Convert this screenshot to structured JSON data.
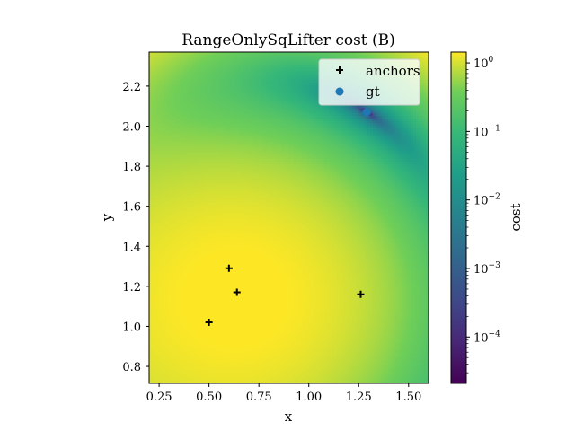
{
  "chart_data": {
    "type": "heatmap",
    "title": "RangeOnlySqLifter cost (B)",
    "xlabel": "x",
    "ylabel": "y",
    "xlim": [
      0.2,
      1.6
    ],
    "ylim": [
      0.715,
      2.37
    ],
    "x_ticks": [
      "0.25",
      "0.50",
      "0.75",
      "1.00",
      "1.25",
      "1.50"
    ],
    "y_ticks": [
      "0.8",
      "1.0",
      "1.2",
      "1.4",
      "1.6",
      "1.8",
      "2.0",
      "2.2"
    ],
    "colorbar": {
      "label": "cost",
      "scale": "log",
      "colormap": "viridis",
      "range": [
        2.1e-05,
        1.44
      ],
      "ticks": [
        {
          "base": "10",
          "exp": "0"
        },
        {
          "base": "10",
          "exp": "−1"
        },
        {
          "base": "10",
          "exp": "−2"
        },
        {
          "base": "10",
          "exp": "−3"
        },
        {
          "base": "10",
          "exp": "−4"
        }
      ]
    },
    "series": [
      {
        "name": "anchors",
        "marker": "plus",
        "color": "#000000",
        "points": [
          [
            0.5,
            1.02
          ],
          [
            0.6,
            1.29
          ],
          [
            0.64,
            1.17
          ],
          [
            1.26,
            1.16
          ]
        ]
      },
      {
        "name": "gt",
        "marker": "circle",
        "color": "#1f77b4",
        "points": [
          [
            1.29,
            2.07
          ]
        ]
      }
    ],
    "legend": {
      "position": "upper-right",
      "entries": [
        "anchors",
        "gt"
      ]
    },
    "grid": false
  }
}
